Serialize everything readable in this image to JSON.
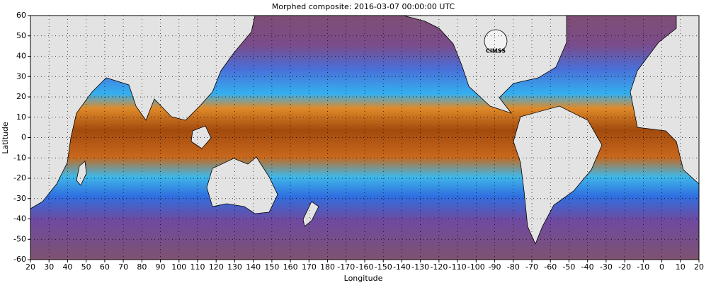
{
  "chart_data": {
    "type": "map",
    "title": "Morphed composite: 2016-03-07 00:00:00 UTC",
    "x_label": "Longitude",
    "y_label": "Latitude",
    "logo_text": "CIMSS",
    "xlim": [
      20,
      380
    ],
    "ylim": [
      -60,
      60
    ],
    "xticks": [
      20,
      30,
      40,
      50,
      60,
      70,
      80,
      90,
      100,
      110,
      120,
      130,
      140,
      150,
      160,
      170,
      180,
      {
        "value": 190,
        "label": "-170"
      },
      {
        "value": 200,
        "label": "-160"
      },
      {
        "value": 210,
        "label": "-150"
      },
      {
        "value": 220,
        "label": "-140"
      },
      {
        "value": 230,
        "label": "-130"
      },
      {
        "value": 240,
        "label": "-120"
      },
      {
        "value": 250,
        "label": "-110"
      },
      {
        "value": 260,
        "label": "-100"
      },
      {
        "value": 270,
        "label": "-90"
      },
      {
        "value": 280,
        "label": "-80"
      },
      {
        "value": 290,
        "label": "-70"
      },
      {
        "value": 300,
        "label": "-60"
      },
      {
        "value": 310,
        "label": "-50"
      },
      {
        "value": 320,
        "label": "-40"
      },
      {
        "value": 330,
        "label": "-30"
      },
      {
        "value": 340,
        "label": "-20"
      },
      {
        "value": 350,
        "label": "-10"
      },
      {
        "value": 360,
        "label": "0"
      },
      {
        "value": 370,
        "label": "10"
      },
      {
        "value": 380,
        "label": "20"
      }
    ],
    "yticks": [
      60,
      50,
      40,
      30,
      20,
      10,
      0,
      -10,
      -20,
      -30,
      -40,
      -50,
      -60
    ],
    "grid": true
  }
}
